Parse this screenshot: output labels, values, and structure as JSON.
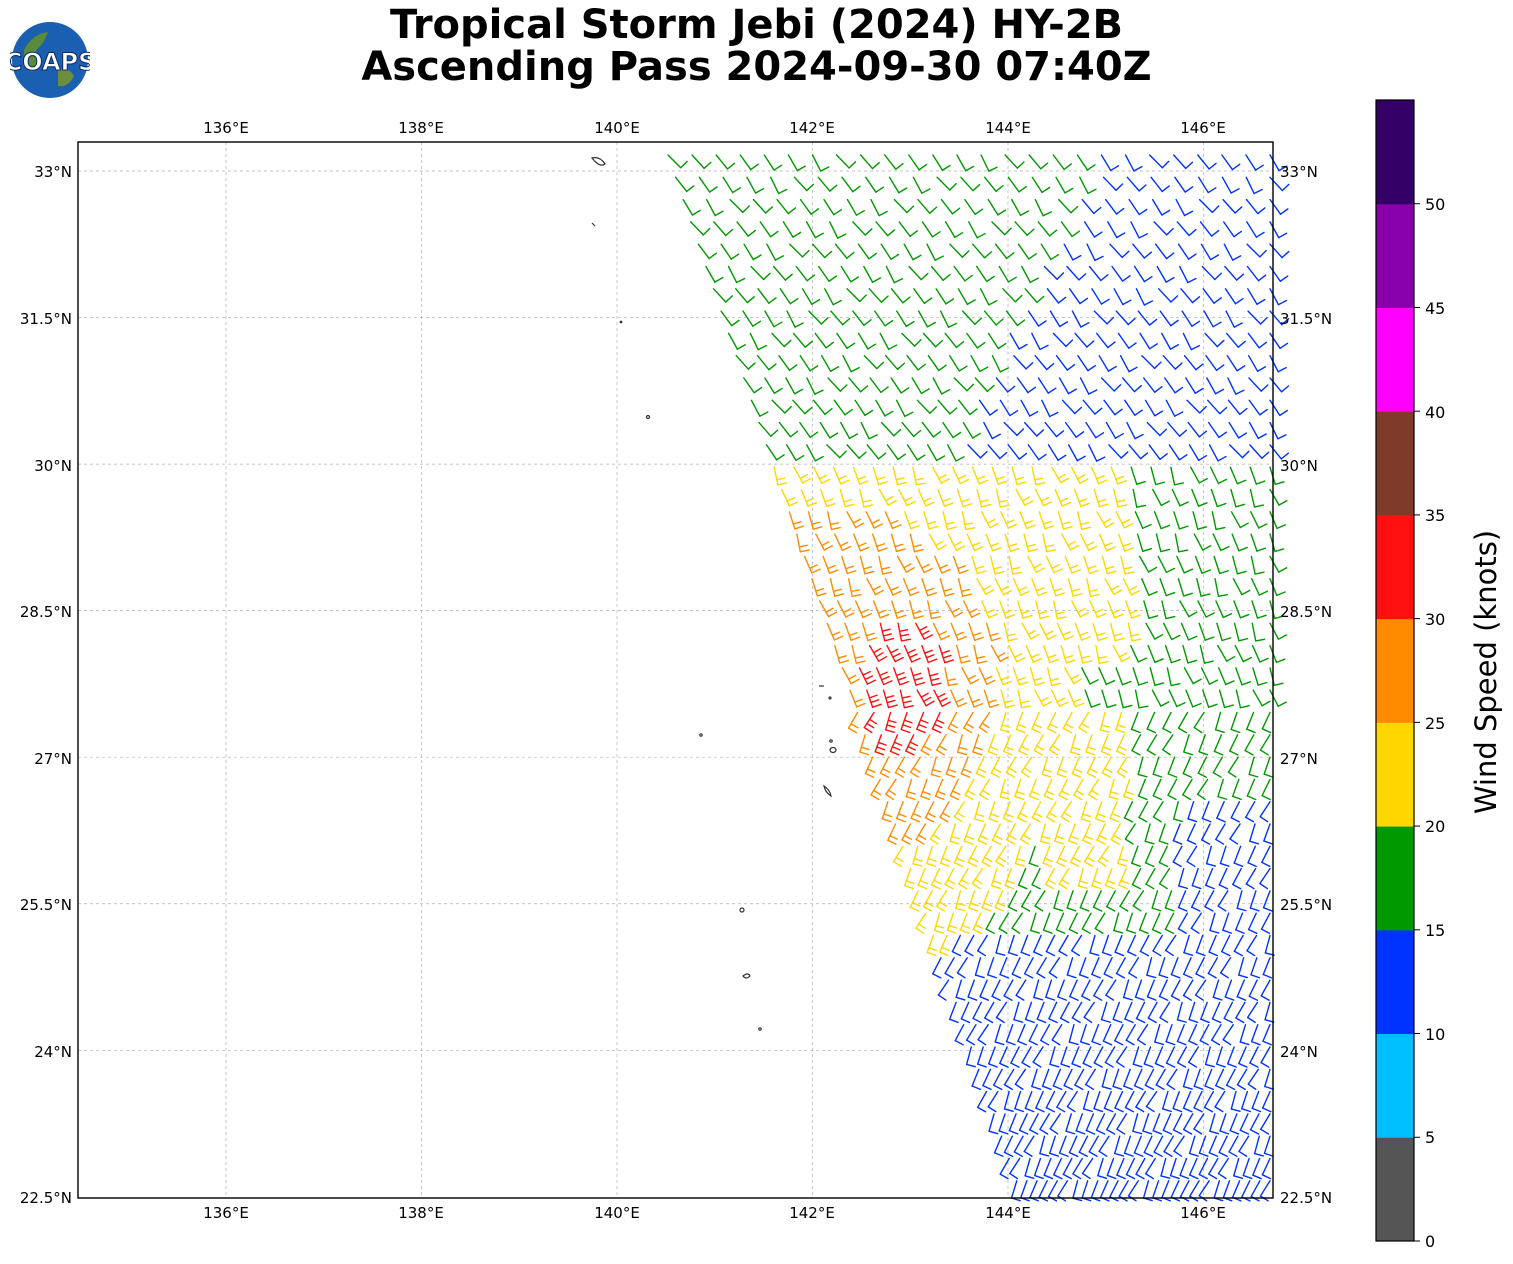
{
  "title": {
    "line1": "Tropical Storm Jebi (2024) HY-2B",
    "line2": "Ascending Pass 2024-09-30 07:40Z"
  },
  "logo": {
    "text": "COAPS"
  },
  "map": {
    "lon_range": [
      134.5,
      146.7
    ],
    "lat_range": [
      22.5,
      33.3
    ],
    "lon_ticks": [
      "136°E",
      "138°E",
      "140°E",
      "142°E",
      "144°E",
      "146°E"
    ],
    "lat_ticks": [
      "33°N",
      "31.5°N",
      "30°N",
      "28.5°N",
      "27°N",
      "25.5°N",
      "24°N",
      "22.5°N"
    ],
    "grid": true,
    "grid_color": "#b0b0b0",
    "coastline_color": "#333333"
  },
  "colorbar": {
    "label": "Wind Speed (knots)",
    "ticks": [
      "0",
      "5",
      "10",
      "15",
      "20",
      "25",
      "30",
      "35",
      "40",
      "45",
      "50"
    ],
    "colors": [
      "#555555",
      "#00bfff",
      "#0033ff",
      "#009900",
      "#ffd700",
      "#ff8c00",
      "#ff1010",
      "#803a2a",
      "#ff00ff",
      "#8800aa",
      "#330066"
    ]
  }
}
